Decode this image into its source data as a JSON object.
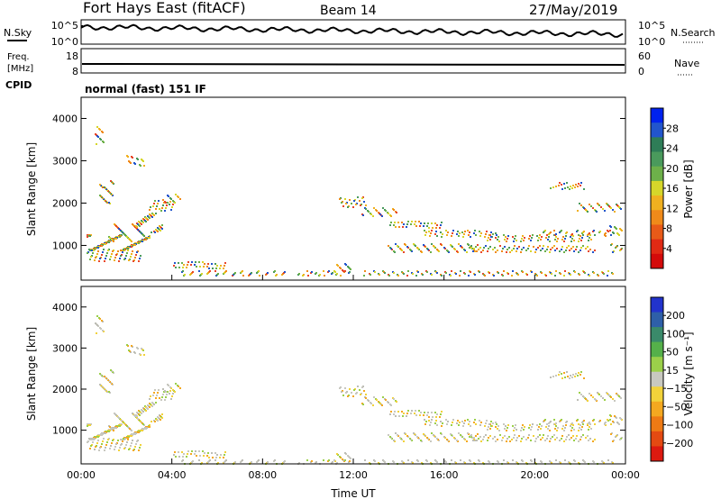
{
  "header": {
    "station": "Fort Hays East (fitACF)",
    "beam": "Beam 14",
    "date": "27/May/2019"
  },
  "side_labels": {
    "nsky": "N.Sky",
    "nsearch": "N.Search",
    "freq_top": "Freq.",
    "freq_unit": "[MHz]",
    "cpid": "CPID",
    "nave": "Nave"
  },
  "cpid_text": "normal (fast) 151 IF",
  "chart_data": [
    {
      "type": "line",
      "name": "noise",
      "ylabels_left": [
        "10^5",
        "10^0"
      ],
      "ylabels_right": [
        "10^5",
        "10^0"
      ]
    },
    {
      "type": "line",
      "name": "frequency",
      "ylabels_left": [
        "18",
        "8"
      ],
      "ylabels_right": [
        "60",
        "0"
      ]
    },
    {
      "type": "heatmap",
      "name": "power",
      "xlabel": "",
      "ylabel": "Slant Range [km]",
      "ylim": [
        180,
        4500
      ],
      "yticks": [
        1000,
        2000,
        3000,
        4000
      ],
      "colorbar_label": "Power [dB]",
      "colorbar_ticks": [
        "28",
        "24",
        "20",
        "16",
        "12",
        "8",
        "4"
      ],
      "colorbar_colors": [
        "#0022ee",
        "#2255cc",
        "#2e7d57",
        "#4a9a5c",
        "#6db04a",
        "#d6d62a",
        "#f0b020",
        "#f08a1a",
        "#e85a18",
        "#e02a14",
        "#d40a0a"
      ]
    },
    {
      "type": "heatmap",
      "name": "velocity",
      "xlabel": "Time UT",
      "ylabel": "Slant Range [km]",
      "ylim": [
        180,
        4500
      ],
      "yticks": [
        1000,
        2000,
        3000,
        4000
      ],
      "xticks": [
        "00:00",
        "04:00",
        "08:00",
        "12:00",
        "16:00",
        "20:00",
        "00:00"
      ],
      "colorbar_label": "Velocity [m s⁻¹]",
      "colorbar_ticks": [
        "200",
        "100",
        "50",
        "15",
        "−15",
        "−50",
        "−100",
        "−200"
      ],
      "colorbar_colors": [
        "#2233cc",
        "#2e5fa8",
        "#3a8a6a",
        "#55b04a",
        "#9bd04a",
        "#c8c8c0",
        "#f2d23a",
        "#f4a820",
        "#ee7a14",
        "#e44a12",
        "#dd1a10"
      ]
    }
  ]
}
